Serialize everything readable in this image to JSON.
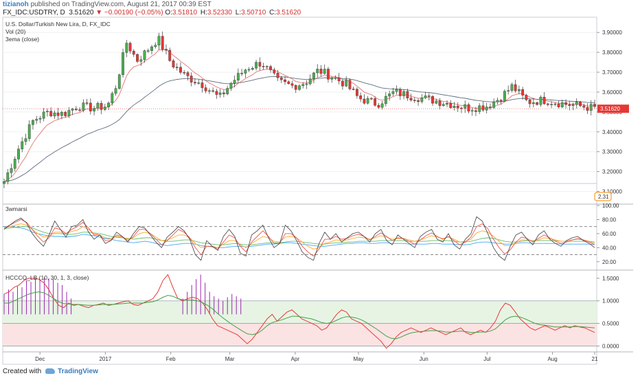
{
  "header": {
    "user": "tizianoh",
    "published_text": "published on TradingView.com, August 21, 2017 00:39 EST",
    "symbol": "FX_IDC:USDTRY, D",
    "last": "3.51620",
    "change": "▼ −0.00190 (−0.05%)",
    "ohlc": [
      {
        "k": "O:",
        "v": "3.51810"
      },
      {
        "k": "H:",
        "v": "3.52330"
      },
      {
        "k": "L:",
        "v": "3.50710"
      },
      {
        "k": "C:",
        "v": "3.51620"
      }
    ]
  },
  "footer": {
    "created_with": "Created with",
    "brand": "TradingView"
  },
  "colors": {
    "up": "#4caf50",
    "down": "#e53935",
    "ema_fast": "#e57373",
    "ema_slow": "#5d6d7e",
    "rsi_raw": "#3c3c3c",
    "rsi_blue": "#42a5f5",
    "rsi_orange": "#ffa726",
    "rsi_red": "#ef5350",
    "rsi_green": "#66bb6a",
    "hcc_red": "#e53935",
    "hcc_green": "#43a047",
    "hcc_purple": "#9c27b0",
    "band_green": "#e7f4e4",
    "band_red": "#fbe3e3"
  },
  "chart_data": [
    {
      "type": "candlestick",
      "title": "U.S. Dollar/Turkish New Lira, D, FX_IDC",
      "legend": [
        "Vol (20)",
        "3ema (close)"
      ],
      "ylim": [
        3.05,
        3.97
      ],
      "y_ticks": [
        "3.90000",
        "3.80000",
        "3.70000",
        "3.60000",
        "3.50000",
        "3.40000",
        "3.30000",
        "3.20000",
        "3.10000"
      ],
      "last_price_label": "3.51620",
      "badge": "2.31",
      "hline": 3.14,
      "x_ticks": [
        "Dec",
        "2017",
        "Feb",
        "Mar",
        "Apr",
        "May",
        "Jun",
        "Jul",
        "Aug",
        "21"
      ],
      "close_path": {
        "dates": [
          "2016-11-14",
          "2016-11-21",
          "2016-11-28",
          "2016-12-05",
          "2016-12-12",
          "2016-12-19",
          "2016-12-26",
          "2017-01-02",
          "2017-01-06",
          "2017-01-11",
          "2017-01-16",
          "2017-01-20",
          "2017-01-26",
          "2017-02-01",
          "2017-02-08",
          "2017-02-16",
          "2017-02-24",
          "2017-03-02",
          "2017-03-09",
          "2017-03-16",
          "2017-03-24",
          "2017-03-31",
          "2017-04-06",
          "2017-04-12",
          "2017-04-18",
          "2017-04-25",
          "2017-05-01",
          "2017-05-10",
          "2017-05-18",
          "2017-05-26",
          "2017-06-05",
          "2017-06-14",
          "2017-06-22",
          "2017-07-01",
          "2017-07-07",
          "2017-07-13",
          "2017-07-20",
          "2017-07-28",
          "2017-08-07",
          "2017-08-14",
          "2017-08-20"
        ],
        "values": [
          3.15,
          3.32,
          3.46,
          3.5,
          3.49,
          3.53,
          3.52,
          3.53,
          3.63,
          3.85,
          3.76,
          3.8,
          3.87,
          3.75,
          3.68,
          3.64,
          3.57,
          3.65,
          3.72,
          3.75,
          3.65,
          3.63,
          3.65,
          3.71,
          3.68,
          3.64,
          3.57,
          3.54,
          3.6,
          3.58,
          3.56,
          3.54,
          3.52,
          3.53,
          3.57,
          3.63,
          3.55,
          3.56,
          3.54,
          3.53,
          3.52
        ]
      }
    },
    {
      "type": "line",
      "title": "3wmarsi",
      "ylim": [
        10,
        100
      ],
      "y_ticks": [
        100,
        80,
        60,
        40,
        20
      ],
      "dashed_levels": [
        70,
        30
      ],
      "series": [
        {
          "key": "raw",
          "values": [
            66,
            72,
            78,
            82,
            75,
            60,
            50,
            42,
            58,
            78,
            66,
            55,
            70,
            72,
            80,
            62,
            52,
            58,
            46,
            50,
            62,
            56,
            48,
            60,
            70,
            68,
            58,
            48,
            40,
            55,
            62,
            70,
            64,
            52,
            30,
            22,
            50,
            42,
            36,
            56,
            66,
            56,
            32,
            28,
            58,
            64,
            72,
            54,
            40,
            46,
            72,
            64,
            50,
            34,
            26,
            22,
            46,
            62,
            52,
            60,
            48,
            54,
            60,
            62,
            56,
            48,
            60,
            66,
            50,
            44,
            58,
            52,
            46,
            40,
            56,
            62,
            66,
            52,
            48,
            60,
            44,
            38,
            52,
            60,
            84,
            78,
            60,
            40,
            28,
            22,
            42,
            58,
            62,
            52,
            44,
            58,
            64,
            52,
            46,
            42,
            50,
            54,
            56,
            50,
            46,
            40
          ]
        },
        {
          "key": "blue",
          "values": [
            70,
            70,
            69,
            68,
            66,
            62,
            60,
            58,
            57,
            56,
            56,
            55,
            56,
            57,
            59,
            58,
            57,
            55,
            53,
            52,
            50,
            49,
            48,
            47,
            48,
            49,
            48,
            46,
            44,
            43,
            44,
            45,
            46,
            46,
            45,
            43,
            42,
            41,
            40,
            40,
            41,
            42,
            42,
            41,
            42,
            43,
            44,
            45,
            45,
            46,
            47,
            47,
            46,
            45,
            44,
            43,
            42,
            42,
            43,
            44,
            45,
            46,
            46,
            47,
            47,
            46,
            46,
            47,
            47,
            46,
            46,
            46,
            45,
            45,
            45,
            45,
            46,
            46,
            45,
            45,
            45,
            44,
            44,
            45,
            47,
            48,
            48,
            47,
            46,
            45,
            45,
            46,
            47,
            47,
            46,
            46,
            46,
            46,
            46,
            45,
            45,
            45,
            45,
            45,
            45,
            44
          ]
        },
        {
          "key": "orange",
          "values": [
            68,
            70,
            72,
            74,
            72,
            66,
            60,
            55,
            56,
            62,
            62,
            60,
            63,
            65,
            70,
            66,
            60,
            58,
            54,
            53,
            56,
            55,
            52,
            54,
            60,
            62,
            60,
            55,
            50,
            51,
            54,
            58,
            58,
            54,
            46,
            40,
            42,
            42,
            40,
            45,
            50,
            50,
            44,
            40,
            46,
            51,
            56,
            54,
            49,
            48,
            55,
            56,
            54,
            48,
            42,
            38,
            40,
            46,
            48,
            51,
            50,
            51,
            53,
            55,
            54,
            52,
            54,
            57,
            55,
            52,
            53,
            53,
            51,
            49,
            51,
            54,
            57,
            55,
            53,
            55,
            52,
            48,
            49,
            52,
            61,
            64,
            62,
            56,
            49,
            43,
            43,
            47,
            51,
            51,
            49,
            51,
            54,
            53,
            51,
            49,
            49,
            51,
            52,
            51,
            49,
            46
          ]
        },
        {
          "key": "red",
          "values": [
            68,
            72,
            76,
            80,
            76,
            66,
            56,
            48,
            54,
            68,
            66,
            60,
            66,
            70,
            76,
            68,
            58,
            58,
            50,
            50,
            58,
            56,
            50,
            56,
            66,
            66,
            60,
            52,
            44,
            50,
            58,
            66,
            62,
            54,
            40,
            30,
            42,
            42,
            38,
            48,
            58,
            54,
            42,
            34,
            48,
            56,
            64,
            56,
            46,
            46,
            60,
            60,
            54,
            42,
            34,
            28,
            38,
            52,
            52,
            56,
            52,
            53,
            57,
            59,
            56,
            51,
            56,
            61,
            56,
            50,
            54,
            53,
            49,
            45,
            51,
            57,
            61,
            56,
            52,
            56,
            50,
            44,
            48,
            55,
            70,
            74,
            67,
            52,
            40,
            31,
            37,
            48,
            55,
            53,
            48,
            53,
            58,
            54,
            49,
            46,
            48,
            51,
            53,
            51,
            48,
            44
          ]
        },
        {
          "key": "green",
          "values": [
            67,
            68,
            69,
            70,
            70,
            68,
            65,
            62,
            60,
            60,
            60,
            59,
            59,
            60,
            62,
            62,
            61,
            60,
            58,
            56,
            55,
            54,
            53,
            52,
            53,
            54,
            54,
            52,
            50,
            49,
            49,
            50,
            51,
            51,
            49,
            47,
            46,
            45,
            44,
            44,
            45,
            46,
            45,
            44,
            44,
            45,
            46,
            47,
            47,
            47,
            48,
            49,
            49,
            48,
            47,
            46,
            45,
            45,
            46,
            47,
            47,
            48,
            48,
            49,
            49,
            49,
            49,
            50,
            50,
            50,
            50,
            50,
            49,
            49,
            49,
            49,
            50,
            50,
            50,
            50,
            49,
            48,
            48,
            49,
            51,
            53,
            54,
            53,
            51,
            49,
            48,
            48,
            49,
            50,
            50,
            50,
            50,
            50,
            50,
            49,
            49,
            49,
            49,
            49,
            49,
            48
          ]
        }
      ]
    },
    {
      "type": "line",
      "title": "HCCCO_LB (10, 30, 1, 3, close)",
      "ylim": [
        -0.1,
        1.65
      ],
      "y_ticks": [
        "1.5000",
        "1.0000",
        "0.5000",
        "0.0000"
      ],
      "bands": [
        {
          "from": 0.5,
          "to": 1.0,
          "color": "green"
        },
        {
          "from": 0.0,
          "to": 0.5,
          "color": "red"
        }
      ],
      "histogram": {
        "start_index": 0,
        "values": [
          1.15,
          1.25,
          1.2,
          1.32,
          1.3,
          1.45,
          1.42,
          1.5,
          1.48,
          1.52,
          1.5,
          1.48,
          1.4,
          1.35,
          1.2,
          1.05,
          0,
          0,
          0,
          0,
          0,
          0,
          0,
          0,
          0,
          0,
          0,
          0,
          0,
          0,
          0,
          0,
          0,
          0,
          0,
          0,
          0,
          0,
          0,
          0,
          1.05,
          1.2,
          1.35,
          1.48,
          1.58,
          1.4,
          1.2,
          1.1,
          1.05,
          1.0,
          1.08,
          1.15,
          1.1,
          1.05
        ]
      },
      "series": [
        {
          "key": "red",
          "values": [
            1.15,
            1.2,
            1.3,
            1.35,
            1.45,
            1.5,
            1.5,
            1.48,
            1.4,
            1.25,
            1.05,
            0.9,
            0.85,
            0.95,
            0.9,
            0.92,
            0.88,
            0.85,
            0.9,
            0.92,
            0.95,
            0.9,
            0.92,
            0.95,
            0.98,
            1.0,
            0.92,
            0.9,
            0.95,
            1.0,
            1.05,
            1.2,
            1.45,
            1.58,
            1.3,
            1.05,
            1.0,
            1.05,
            1.08,
            1.05,
            0.95,
            0.8,
            0.6,
            0.45,
            0.4,
            0.35,
            0.3,
            0.25,
            0.15,
            0.05,
            0.15,
            0.3,
            0.45,
            0.6,
            0.7,
            0.55,
            0.65,
            0.75,
            0.8,
            0.7,
            0.6,
            0.55,
            0.5,
            0.45,
            0.35,
            0.4,
            0.55,
            0.7,
            0.8,
            0.75,
            0.6,
            0.55,
            0.5,
            0.4,
            0.3,
            0.2,
            0.1,
            -0.05,
            0.05,
            0.2,
            0.3,
            0.35,
            0.4,
            0.35,
            0.3,
            0.35,
            0.4,
            0.35,
            0.3,
            0.25,
            0.3,
            0.35,
            0.4,
            0.3,
            0.25,
            0.3,
            0.35,
            0.3,
            0.4,
            0.55,
            0.8,
            0.95,
            0.9,
            0.75,
            0.6,
            0.5,
            0.4,
            0.35,
            0.4,
            0.45,
            0.4,
            0.35,
            0.4,
            0.45,
            0.4,
            0.45,
            0.42,
            0.4,
            0.35,
            0.3
          ]
        },
        {
          "key": "green",
          "values": [
            0.95,
            0.95,
            1.0,
            1.05,
            1.1,
            1.15,
            1.18,
            1.2,
            1.18,
            1.12,
            1.05,
            0.98,
            0.94,
            0.93,
            0.92,
            0.92,
            0.91,
            0.9,
            0.9,
            0.91,
            0.92,
            0.92,
            0.92,
            0.93,
            0.94,
            0.95,
            0.95,
            0.95,
            0.95,
            0.97,
            0.98,
            1.02,
            1.08,
            1.12,
            1.1,
            1.05,
            1.02,
            1.02,
            1.02,
            1.0,
            0.96,
            0.9,
            0.82,
            0.72,
            0.63,
            0.55,
            0.47,
            0.4,
            0.33,
            0.27,
            0.25,
            0.28,
            0.35,
            0.45,
            0.52,
            0.55,
            0.58,
            0.62,
            0.66,
            0.66,
            0.64,
            0.62,
            0.6,
            0.56,
            0.52,
            0.5,
            0.52,
            0.57,
            0.62,
            0.65,
            0.64,
            0.62,
            0.58,
            0.52,
            0.45,
            0.38,
            0.3,
            0.22,
            0.17,
            0.16,
            0.2,
            0.25,
            0.29,
            0.31,
            0.32,
            0.33,
            0.34,
            0.34,
            0.33,
            0.31,
            0.31,
            0.32,
            0.33,
            0.32,
            0.3,
            0.3,
            0.31,
            0.31,
            0.33,
            0.38,
            0.48,
            0.58,
            0.64,
            0.66,
            0.64,
            0.6,
            0.55,
            0.5,
            0.47,
            0.46,
            0.44,
            0.42,
            0.42,
            0.42,
            0.42,
            0.43,
            0.43,
            0.42,
            0.41,
            0.4
          ]
        }
      ]
    }
  ]
}
